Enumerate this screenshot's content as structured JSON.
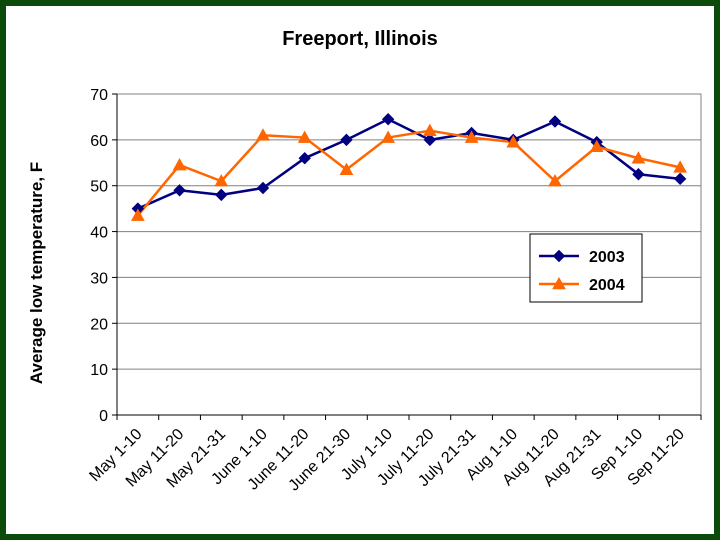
{
  "chart_data": {
    "type": "line",
    "title": "Freeport, Illinois",
    "ylabel": "Average low temperature, F",
    "xlabel": "",
    "categories": [
      "May 1-10",
      "May 11-20",
      "May 21-31",
      "June 1-10",
      "June 11-20",
      "June 21-30",
      "July 1-10",
      "July 11-20",
      "July 21-31",
      "Aug 1-10",
      "Aug 11-20",
      "Aug 21-31",
      "Sep 1-10",
      "Sep 11-20"
    ],
    "ylim": [
      0,
      70
    ],
    "yticks": [
      0,
      10,
      20,
      30,
      40,
      50,
      60,
      70
    ],
    "grid": true,
    "legend_position": "right",
    "series": [
      {
        "name": "2003",
        "color": "#000080",
        "marker": "diamond",
        "values": [
          45,
          49,
          48,
          49.5,
          56,
          60,
          64.5,
          60,
          61.5,
          60,
          64,
          59.5,
          52.5,
          51.5
        ]
      },
      {
        "name": "2004",
        "color": "#ff6600",
        "marker": "triangle",
        "values": [
          43.5,
          54.5,
          51,
          61,
          60.5,
          53.5,
          60.5,
          62,
          60.5,
          59.5,
          51,
          58.5,
          56,
          54
        ]
      }
    ]
  }
}
